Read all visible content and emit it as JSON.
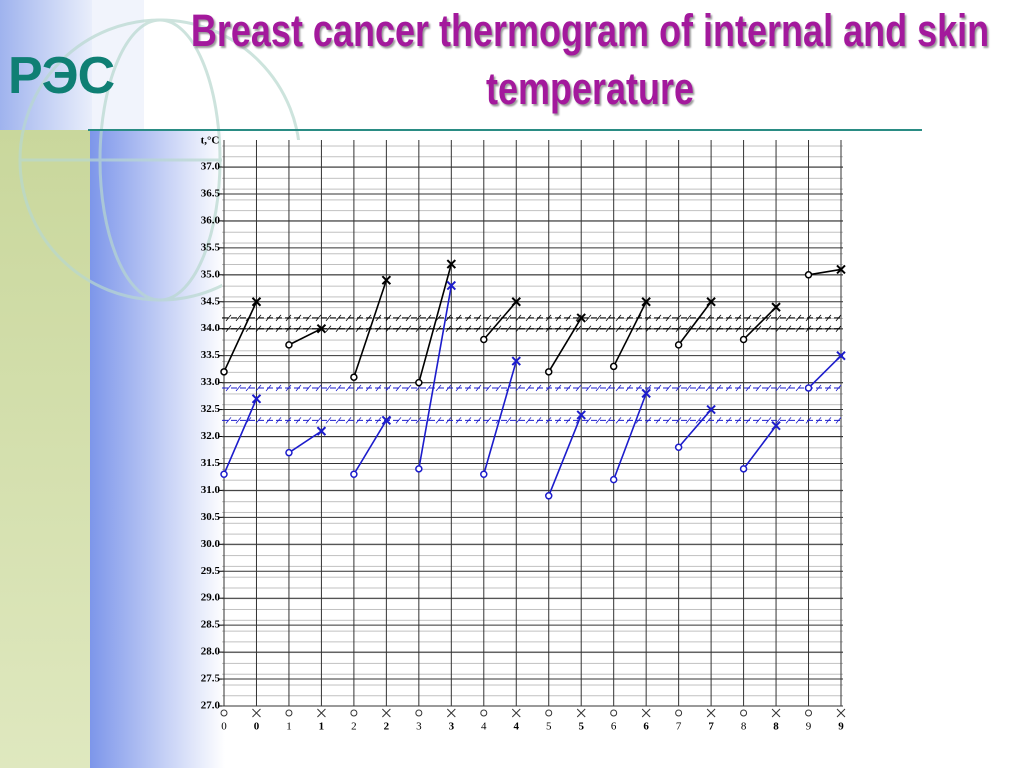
{
  "logo": "РЭС",
  "chart_data": {
    "type": "line",
    "title": "Breast cancer thermogram of internal and skin temperature",
    "y_label": "t,°C",
    "categories": [
      "0",
      "0",
      "1",
      "1",
      "2",
      "2",
      "3",
      "3",
      "4",
      "4",
      "5",
      "5",
      "6",
      "6",
      "7",
      "7",
      "8",
      "8",
      "9",
      "9"
    ],
    "series": [
      {
        "color": "#000000",
        "values": [
          33.2,
          34.5,
          33.7,
          34.0,
          33.1,
          34.9,
          33.0,
          35.2,
          33.8,
          34.5,
          33.2,
          34.2,
          33.3,
          34.5,
          33.7,
          34.5,
          33.8,
          34.4,
          35.0,
          35.1
        ]
      },
      {
        "color": "#1c1ccc",
        "values": [
          31.3,
          32.7,
          31.7,
          32.1,
          31.3,
          32.3,
          31.4,
          34.8,
          31.3,
          33.4,
          30.9,
          32.4,
          31.2,
          32.8,
          31.8,
          32.5,
          31.4,
          32.2,
          32.9,
          33.5
        ]
      }
    ],
    "bands": [
      {
        "color": "#000000",
        "values": [
          34.0,
          34.2
        ]
      },
      {
        "color": "#1c1ccc",
        "values": [
          32.3,
          32.9
        ]
      }
    ],
    "ylim": [
      27,
      37
    ],
    "yticks": [
      {
        "value": 27,
        "label": "27.0"
      },
      27.5,
      {
        "value": 28,
        "label": "28.0"
      },
      28.5,
      {
        "value": 29,
        "label": "29.0"
      },
      29.5,
      {
        "value": 30,
        "label": "30.0"
      },
      30.5,
      {
        "value": 31,
        "label": "31.0"
      },
      31.5,
      {
        "value": 32,
        "label": "32.0"
      },
      32.5,
      {
        "value": 33,
        "label": "33.0"
      },
      33.5,
      {
        "value": 34,
        "label": "34.0"
      },
      34.5,
      {
        "value": 35,
        "label": "35.0"
      },
      35.5,
      {
        "value": 36,
        "label": "36.0"
      },
      36.5,
      {
        "value": 37,
        "label": "37.0"
      }
    ],
    "grid": true
  }
}
